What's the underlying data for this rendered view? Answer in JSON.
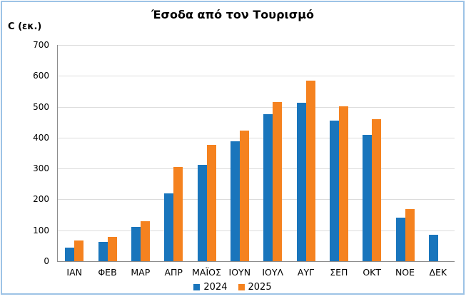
{
  "figure": {
    "border_color": "#9DC3E6",
    "background_color": "#FFFFFF"
  },
  "chart_data": {
    "type": "bar",
    "title": "Έσοδα από τον Τουρισμό",
    "ylabel": "C (εκ.)",
    "xlabel": "",
    "categories": [
      "ΙΑΝ",
      "ΦΕΒ",
      "ΜΑΡ",
      "ΑΠΡ",
      "ΜΑΪΟΣ",
      "ΙΟΥΝ",
      "ΙΟΥΛ",
      "ΑΥΓ",
      "ΣΕΠ",
      "ΟΚΤ",
      "ΝΟΕ",
      "ΔΕΚ"
    ],
    "series": [
      {
        "name": "2024",
        "color": "#1975BC",
        "values": [
          44,
          63,
          112,
          219,
          313,
          388,
          477,
          513,
          456,
          409,
          140,
          86
        ]
      },
      {
        "name": "2025",
        "color": "#F5821F",
        "values": [
          68,
          78,
          129,
          305,
          376,
          424,
          516,
          584,
          501,
          461,
          169,
          null
        ]
      }
    ],
    "ylim": [
      0,
      700
    ],
    "ytick_step": 100,
    "grid": true,
    "gridline_color": "#DCDCDC",
    "axis_color": "#8C8C8C",
    "legend_position": "bottom"
  }
}
